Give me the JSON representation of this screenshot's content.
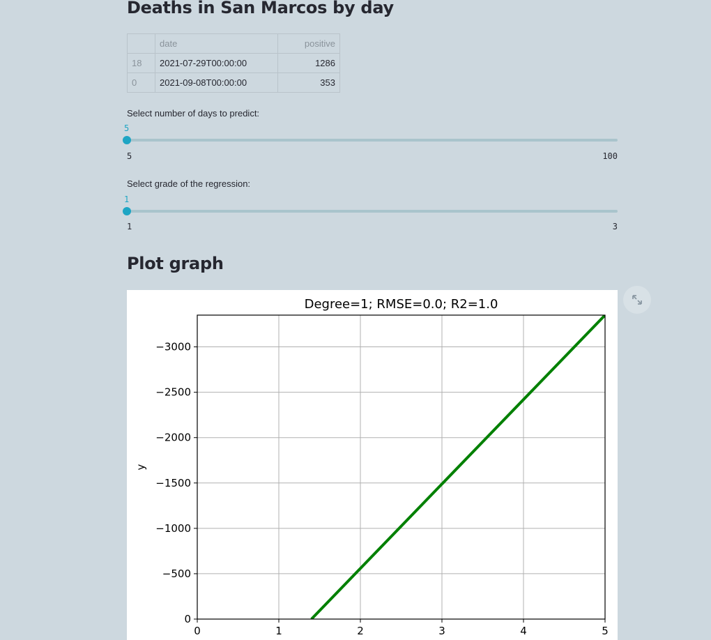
{
  "deaths_section": {
    "title": "Deaths in San Marcos by day",
    "table": {
      "columns": [
        "",
        "date",
        "positive"
      ],
      "rows": [
        {
          "index": "18",
          "date": "2021-07-29T00:00:00",
          "positive": "1286"
        },
        {
          "index": "0",
          "date": "2021-09-08T00:00:00",
          "positive": "353"
        }
      ]
    }
  },
  "sliders": [
    {
      "label": "Select number of days to predict:",
      "value": 5,
      "min": 5,
      "max": 100,
      "value_text": "5",
      "min_text": "5",
      "max_text": "100"
    },
    {
      "label": "Select grade of the regression:",
      "value": 1,
      "min": 1,
      "max": 3,
      "value_text": "1",
      "min_text": "1",
      "max_text": "3"
    }
  ],
  "plot_section": {
    "title": "Plot graph",
    "expand_icon": "expand-arrows-icon"
  },
  "chart_data": {
    "type": "line",
    "title": "Degree=1; RMSE=0.0; R2=1.0",
    "xlabel": "",
    "ylabel": "y",
    "xlim": [
      0,
      5
    ],
    "ylim": [
      0,
      -3350
    ],
    "y_inverted": true,
    "grid": true,
    "x_ticks": [
      0,
      1,
      2,
      3,
      4,
      5
    ],
    "y_ticks": [
      0,
      -500,
      -1000,
      -1500,
      -2000,
      -2500,
      -3000
    ],
    "y_tick_labels": [
      "0",
      "−500",
      "−1000",
      "−1500",
      "−2000",
      "−2500",
      "−3000"
    ],
    "series": [
      {
        "x": [
          1.4,
          5
        ],
        "y": [
          0,
          -3350
        ],
        "color": "#008000"
      }
    ]
  }
}
